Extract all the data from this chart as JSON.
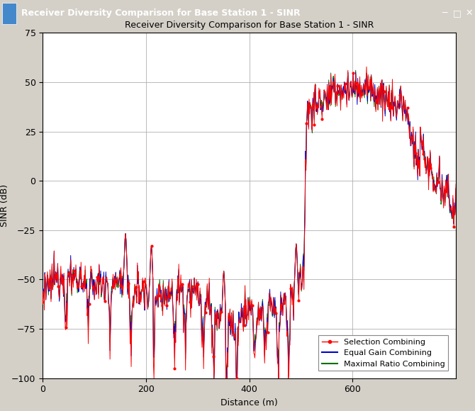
{
  "title": "Receiver Diversity Comparison for Base Station 1 - SINR",
  "xlabel": "Distance (m)",
  "ylabel": "SINR (dB)",
  "xlim": [
    0,
    800
  ],
  "ylim": [
    -100,
    75
  ],
  "yticks": [
    -100,
    -75,
    -50,
    -25,
    0,
    25,
    50,
    75
  ],
  "xticks": [
    0,
    200,
    400,
    600
  ],
  "bg_color": "#ffffff",
  "grid_color": "#b0b0b0",
  "sc_color": "#ff0000",
  "egc_color": "#0000cd",
  "mrc_color": "#007000",
  "titlebar_color": "#1a5276",
  "legend_labels": [
    "Selection Combining",
    "Equal Gain Combining",
    "Maximal Ratio Combining"
  ],
  "title_fontsize": 9,
  "axis_fontsize": 9,
  "tick_fontsize": 9,
  "seed": 12345
}
